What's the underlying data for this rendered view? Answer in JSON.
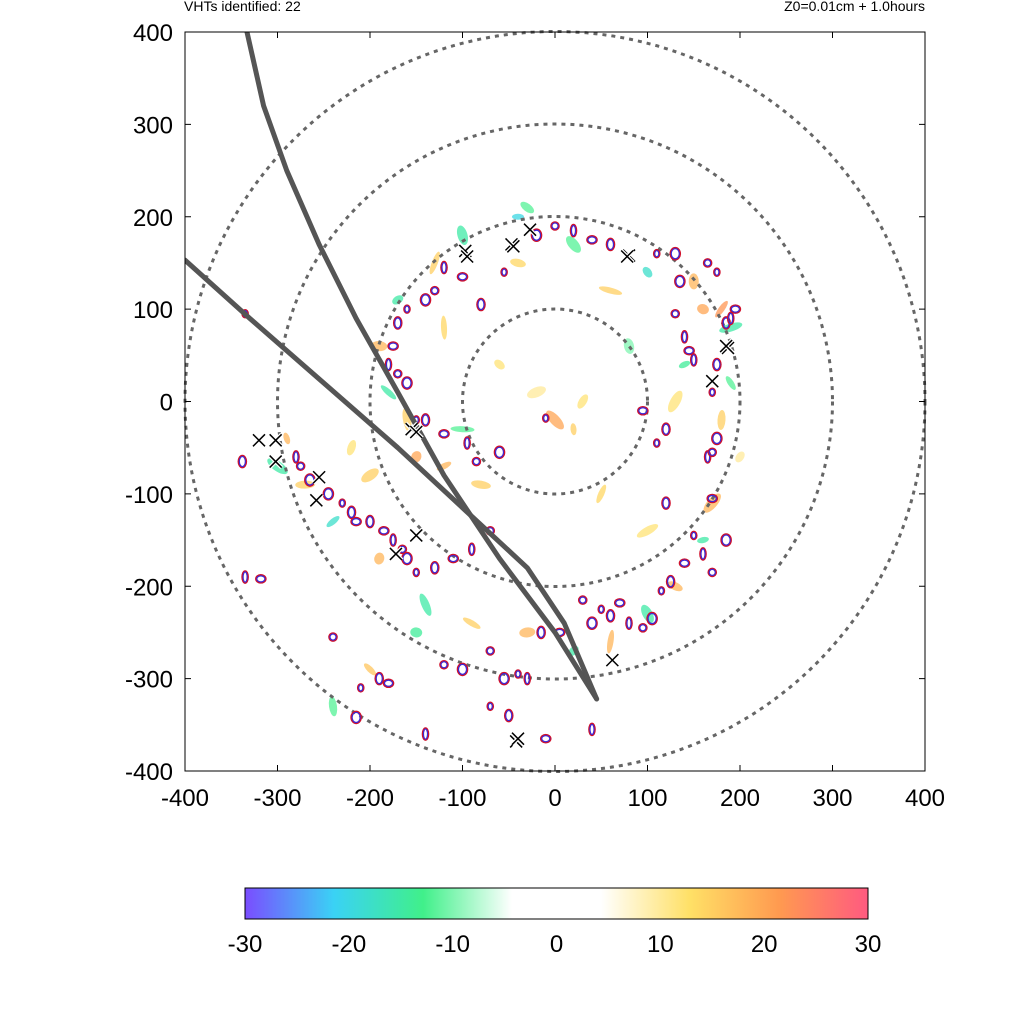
{
  "header": {
    "left_text": "VHTs identified: 22",
    "right_text": "Z0=0.01cm  + 1.0hours"
  },
  "colors": {
    "positive_contour": "#d0102a",
    "negative_contour": "#3a2bd8",
    "track_line": "#555555",
    "range_ring": "#666666",
    "marker": "#000000"
  },
  "chart_data": {
    "type": "scatter",
    "title": "",
    "xlabel": "",
    "ylabel": "",
    "xlim": [
      -400,
      400
    ],
    "ylim": [
      -400,
      400
    ],
    "xticks": [
      -400,
      -300,
      -200,
      -100,
      0,
      100,
      200,
      300,
      400
    ],
    "yticks": [
      -400,
      -300,
      -200,
      -100,
      0,
      100,
      200,
      300,
      400
    ],
    "grid": false,
    "range_rings": [
      100,
      200,
      300,
      400
    ],
    "colorbar": {
      "min": -30,
      "max": 30,
      "ticks": [
        -30,
        -20,
        -10,
        0,
        10,
        20,
        30
      ],
      "stops": [
        "#7a4dff",
        "#3ad2f5",
        "#40f08a",
        "#ffffff",
        "#ffffff",
        "#ffe066",
        "#ff9a50",
        "#ff5a80"
      ]
    },
    "tracks": [
      {
        "points": [
          [
            -333,
            400
          ],
          [
            -315,
            320
          ],
          [
            -290,
            250
          ],
          [
            -255,
            170
          ],
          [
            -215,
            90
          ],
          [
            -170,
            10
          ],
          [
            -120,
            -80
          ],
          [
            -60,
            -170
          ],
          [
            0,
            -250
          ],
          [
            45,
            -322
          ]
        ]
      },
      {
        "points": [
          [
            -400,
            153
          ],
          [
            -330,
            90
          ],
          [
            -250,
            20
          ],
          [
            -170,
            -50
          ],
          [
            -100,
            -115
          ],
          [
            -30,
            -180
          ],
          [
            10,
            -240
          ],
          [
            45,
            -322
          ]
        ]
      }
    ],
    "vht_markers": [
      [
        -320,
        -42
      ],
      [
        -302,
        -42
      ],
      [
        -302,
        -65
      ],
      [
        -255,
        -82
      ],
      [
        -258,
        -107
      ],
      [
        -172,
        -165
      ],
      [
        -155,
        -30
      ],
      [
        -150,
        -145
      ],
      [
        -97,
        163
      ],
      [
        -95,
        157
      ],
      [
        -47,
        170
      ],
      [
        -45,
        168
      ],
      [
        -27,
        186
      ],
      [
        80,
        158
      ],
      [
        78,
        157
      ],
      [
        187,
        58
      ],
      [
        185,
        60
      ],
      [
        170,
        22
      ],
      [
        62,
        -280
      ],
      [
        -42,
        -368
      ],
      [
        -40,
        -365
      ],
      [
        -150,
        -33
      ]
    ],
    "small_contours": [
      [
        -335,
        95
      ],
      [
        -338,
        -65
      ],
      [
        -318,
        -192
      ],
      [
        -335,
        -190
      ],
      [
        -240,
        -255
      ],
      [
        -215,
        -342
      ],
      [
        -210,
        -310
      ],
      [
        -190,
        -300
      ],
      [
        -180,
        -305
      ],
      [
        -140,
        -360
      ],
      [
        -120,
        -285
      ],
      [
        -100,
        -290
      ],
      [
        -70,
        -330
      ],
      [
        -50,
        -340
      ],
      [
        -10,
        -365
      ],
      [
        -30,
        -300
      ],
      [
        30,
        -215
      ],
      [
        40,
        -240
      ],
      [
        50,
        -225
      ],
      [
        60,
        -232
      ],
      [
        70,
        -218
      ],
      [
        80,
        -240
      ],
      [
        95,
        -245
      ],
      [
        105,
        -235
      ],
      [
        115,
        -205
      ],
      [
        125,
        -195
      ],
      [
        140,
        -175
      ],
      [
        160,
        -165
      ],
      [
        170,
        -185
      ],
      [
        185,
        -150
      ],
      [
        150,
        -145
      ],
      [
        120,
        -110
      ],
      [
        170,
        -105
      ],
      [
        165,
        -60
      ],
      [
        170,
        -55
      ],
      [
        175,
        -40
      ],
      [
        170,
        10
      ],
      [
        175,
        40
      ],
      [
        145,
        55
      ],
      [
        150,
        45
      ],
      [
        130,
        95
      ],
      [
        135,
        130
      ],
      [
        175,
        140
      ],
      [
        185,
        85
      ],
      [
        195,
        100
      ],
      [
        190,
        90
      ],
      [
        165,
        150
      ],
      [
        130,
        160
      ],
      [
        110,
        160
      ],
      [
        60,
        170
      ],
      [
        40,
        175
      ],
      [
        20,
        185
      ],
      [
        0,
        190
      ],
      [
        -20,
        180
      ],
      [
        -55,
        140
      ],
      [
        -80,
        105
      ],
      [
        -100,
        135
      ],
      [
        -120,
        145
      ],
      [
        -130,
        120
      ],
      [
        -140,
        110
      ],
      [
        -160,
        100
      ],
      [
        -170,
        85
      ],
      [
        -175,
        60
      ],
      [
        -180,
        40
      ],
      [
        -170,
        30
      ],
      [
        -160,
        20
      ],
      [
        -150,
        -20
      ],
      [
        -140,
        -20
      ],
      [
        -120,
        -35
      ],
      [
        -95,
        -45
      ],
      [
        -85,
        -65
      ],
      [
        -60,
        -55
      ],
      [
        -10,
        -18
      ],
      [
        -200,
        -130
      ],
      [
        -185,
        -140
      ],
      [
        -175,
        -150
      ],
      [
        -165,
        -160
      ],
      [
        -160,
        -170
      ],
      [
        -150,
        -185
      ],
      [
        -130,
        -180
      ],
      [
        -110,
        -170
      ],
      [
        -90,
        -160
      ],
      [
        -70,
        -140
      ],
      [
        -245,
        -100
      ],
      [
        -230,
        -110
      ],
      [
        -220,
        -120
      ],
      [
        -215,
        -130
      ],
      [
        -280,
        -60
      ],
      [
        -275,
        -70
      ],
      [
        -265,
        -85
      ],
      [
        110,
        -45
      ],
      [
        120,
        -30
      ],
      [
        95,
        -10
      ],
      [
        140,
        70
      ],
      [
        -70,
        -270
      ],
      [
        -55,
        -300
      ],
      [
        -40,
        -295
      ],
      [
        -15,
        -250
      ],
      [
        5,
        -250
      ],
      [
        40,
        -355
      ]
    ],
    "colored_blobs": [
      {
        "x": -40,
        "y": 200,
        "v": -20
      },
      {
        "x": -30,
        "y": 210,
        "v": -12
      },
      {
        "x": -100,
        "y": 180,
        "v": -15
      },
      {
        "x": -130,
        "y": 150,
        "v": 15
      },
      {
        "x": -170,
        "y": 110,
        "v": -15
      },
      {
        "x": -190,
        "y": 60,
        "v": 18
      },
      {
        "x": -180,
        "y": 10,
        "v": -15
      },
      {
        "x": -160,
        "y": -20,
        "v": 15
      },
      {
        "x": -150,
        "y": -60,
        "v": 20
      },
      {
        "x": -120,
        "y": -70,
        "v": 18
      },
      {
        "x": -80,
        "y": -90,
        "v": 15
      },
      {
        "x": 0,
        "y": -20,
        "v": 20
      },
      {
        "x": 20,
        "y": -30,
        "v": 15
      },
      {
        "x": 30,
        "y": 0,
        "v": 12
      },
      {
        "x": -20,
        "y": 10,
        "v": 10
      },
      {
        "x": 60,
        "y": 120,
        "v": 15
      },
      {
        "x": 100,
        "y": 140,
        "v": -18
      },
      {
        "x": 150,
        "y": 130,
        "v": 18
      },
      {
        "x": 180,
        "y": 100,
        "v": 22
      },
      {
        "x": 190,
        "y": 80,
        "v": -15
      },
      {
        "x": 160,
        "y": 100,
        "v": 20
      },
      {
        "x": 190,
        "y": 20,
        "v": -12
      },
      {
        "x": 180,
        "y": -20,
        "v": 15
      },
      {
        "x": 170,
        "y": -110,
        "v": 18
      },
      {
        "x": 160,
        "y": -150,
        "v": -15
      },
      {
        "x": 130,
        "y": -200,
        "v": 18
      },
      {
        "x": 100,
        "y": -230,
        "v": -15
      },
      {
        "x": 60,
        "y": -260,
        "v": 18
      },
      {
        "x": 20,
        "y": -270,
        "v": -15
      },
      {
        "x": -30,
        "y": -250,
        "v": 18
      },
      {
        "x": -90,
        "y": -240,
        "v": 15
      },
      {
        "x": -140,
        "y": -220,
        "v": -15
      },
      {
        "x": -190,
        "y": -170,
        "v": 18
      },
      {
        "x": -240,
        "y": -130,
        "v": -18
      },
      {
        "x": -270,
        "y": -90,
        "v": 15
      },
      {
        "x": -300,
        "y": -70,
        "v": -15
      },
      {
        "x": -290,
        "y": -40,
        "v": 18
      },
      {
        "x": -220,
        "y": -50,
        "v": 12
      },
      {
        "x": -200,
        "y": -80,
        "v": 15
      },
      {
        "x": -100,
        "y": -30,
        "v": -12
      },
      {
        "x": -60,
        "y": 40,
        "v": 12
      },
      {
        "x": 80,
        "y": 60,
        "v": -10
      },
      {
        "x": 50,
        "y": -100,
        "v": 14
      },
      {
        "x": 100,
        "y": -140,
        "v": 12
      },
      {
        "x": -150,
        "y": -250,
        "v": -14
      },
      {
        "x": -200,
        "y": -290,
        "v": 16
      },
      {
        "x": -240,
        "y": -330,
        "v": -12
      },
      {
        "x": 130,
        "y": 0,
        "v": 12
      },
      {
        "x": 140,
        "y": 40,
        "v": -14
      },
      {
        "x": -40,
        "y": 150,
        "v": 14
      },
      {
        "x": 20,
        "y": 170,
        "v": -12
      },
      {
        "x": -120,
        "y": 80,
        "v": 14
      },
      {
        "x": 200,
        "y": -60,
        "v": 10
      }
    ]
  }
}
